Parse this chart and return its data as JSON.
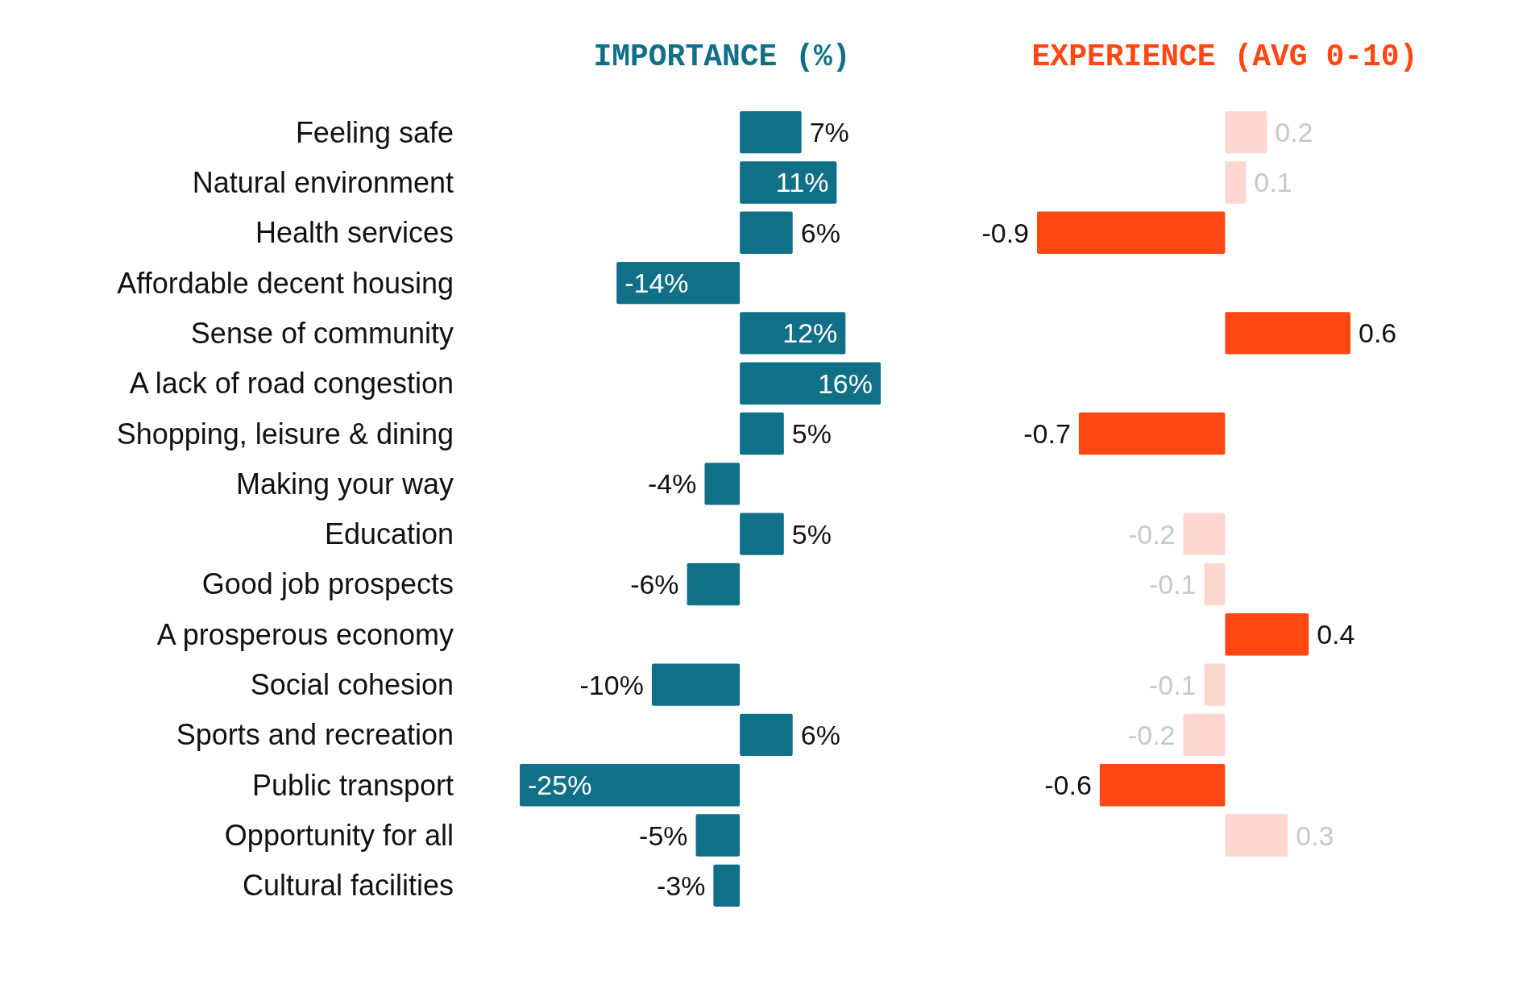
{
  "chart_data": [
    {
      "type": "bar",
      "orientation": "horizontal",
      "title": "IMPORTANCE (%)",
      "categories": [
        "Feeling safe",
        "Natural environment",
        "Health services",
        "Affordable decent housing",
        "Sense of community",
        "A lack of road congestion",
        "Shopping, leisure & dining",
        "Making your way",
        "Education",
        "Good job prospects",
        "A prosperous economy",
        "Social cohesion",
        "Sports and recreation",
        "Public transport",
        "Opportunity for all",
        "Cultural facilities"
      ],
      "series": [
        {
          "color": "#107088",
          "values": [
            7,
            11,
            6,
            -14,
            12,
            16,
            5,
            -4,
            5,
            -6,
            null,
            -10,
            6,
            -25,
            -5,
            -3
          ],
          "value_labels": [
            "7%",
            "11%",
            "6%",
            "-14%",
            "12%",
            "16%",
            "5%",
            "-4%",
            "5%",
            "-6%",
            null,
            "-10%",
            "6%",
            "-25%",
            "-5%",
            "-3%"
          ]
        }
      ],
      "tick_labels": "y"
    },
    {
      "type": "bar",
      "orientation": "horizontal",
      "title": "EXPERIENCE (AVG 0-10)",
      "categories": [
        null,
        null,
        null,
        null,
        null,
        null,
        null,
        null,
        null,
        null,
        null,
        null,
        null,
        null,
        null,
        null
      ],
      "values": [
        0.2,
        0.1,
        -0.9,
        null,
        0.6,
        null,
        -0.7,
        null,
        -0.2,
        -0.1,
        0.4,
        -0.1,
        -0.2,
        -0.6,
        0.3,
        null
      ],
      "colors": [
        "#fed8d0",
        "#fed8d0",
        "#ff4713",
        null,
        "#ff4713",
        null,
        "#ff4713",
        null,
        "#fed8d0",
        "#fed8d0",
        "#ff4713",
        "#fed8d0",
        "#fed8d0",
        "#ff4713",
        "#fed8d0",
        null
      ],
      "data_labels": true,
      "tick_labels": false
    }
  ]
}
